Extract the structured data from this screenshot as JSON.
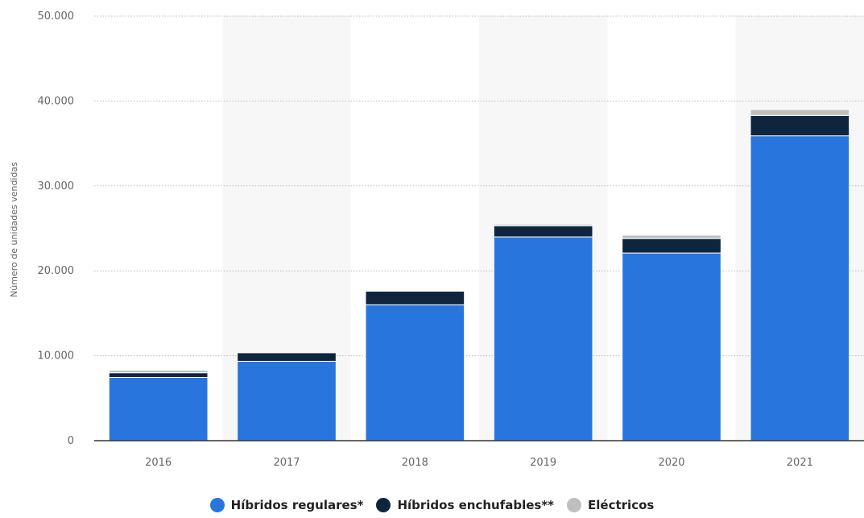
{
  "chart_data": {
    "type": "bar",
    "stacked": true,
    "categories": [
      "2016",
      "2017",
      "2018",
      "2019",
      "2020",
      "2021"
    ],
    "series": [
      {
        "name": "Híbridos regulares*",
        "color": "#2876dd",
        "values": [
          7450,
          9350,
          16000,
          24000,
          22100,
          35900
        ]
      },
      {
        "name": "Híbridos enchufables**",
        "color": "#0f253d",
        "values": [
          550,
          1000,
          1600,
          1300,
          1700,
          2400
        ]
      },
      {
        "name": "Eléctricos",
        "color": "#bfbfbf",
        "values": [
          300,
          0,
          0,
          200,
          400,
          700
        ]
      }
    ],
    "ylabel": "Número de unidades vendidas",
    "xlabel": "",
    "ylim": [
      0,
      50000
    ],
    "yticks": [
      0,
      10000,
      20000,
      30000,
      40000,
      50000
    ],
    "ytick_labels": [
      "0",
      "10.000",
      "20.000",
      "30.000",
      "40.000",
      "50.000"
    ],
    "grid": true,
    "legend_position": "bottom"
  }
}
